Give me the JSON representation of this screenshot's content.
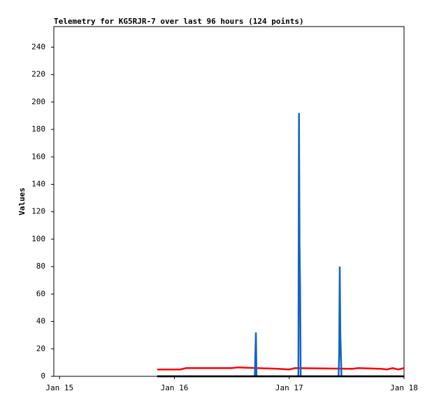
{
  "chart_data": {
    "type": "line",
    "title": "Telemetry for KG5RJR-7 over last 96 hours (124 points)",
    "y_label": "Values",
    "xlim": [
      -0.05,
      3
    ],
    "xticks": [
      {
        "value": 0,
        "label": "Jan 15"
      },
      {
        "value": 1,
        "label": "Jan 16"
      },
      {
        "value": 2,
        "label": "Jan 17"
      },
      {
        "value": 3,
        "label": "Jan 18"
      }
    ],
    "ylim": [
      0,
      255
    ],
    "yticks": [
      0,
      20,
      40,
      60,
      80,
      100,
      120,
      140,
      160,
      180,
      200,
      220,
      240
    ],
    "series": [
      {
        "color": "#ff0000",
        "x": [
          0.85,
          1.05,
          1.1,
          1.5,
          1.55,
          1.9,
          2.0,
          2.05,
          2.55,
          2.6,
          2.8,
          2.85,
          2.9,
          2.95,
          3.0
        ],
        "values": [
          5,
          5,
          6,
          6,
          6.5,
          5.5,
          5,
          6,
          5.5,
          6,
          5.5,
          5,
          6,
          5,
          6
        ]
      },
      {
        "color": "#1565c0",
        "x": [
          0.85,
          1.7,
          1.705,
          1.71,
          1.715,
          1.72,
          2.08,
          2.085,
          2.09,
          2.095,
          2.1,
          2.43,
          2.435,
          2.44,
          2.445,
          2.45,
          2.455,
          3.0
        ],
        "values": [
          0,
          0,
          16,
          32,
          0,
          0,
          0,
          192,
          96,
          64,
          0,
          0,
          16,
          80,
          32,
          16,
          0,
          0
        ]
      },
      {
        "color": "#000000",
        "x": [
          0.85,
          3.0
        ],
        "values": [
          0,
          0
        ]
      }
    ]
  }
}
